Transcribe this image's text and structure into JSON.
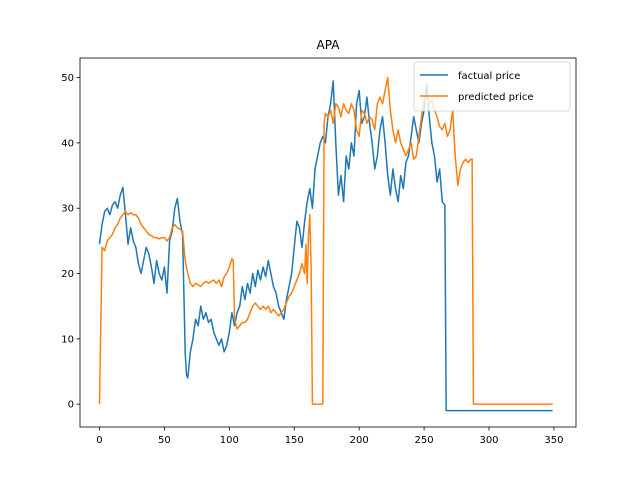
{
  "chart_data": {
    "type": "line",
    "title": "APA",
    "xlabel": "",
    "ylabel": "",
    "xlim": [
      -15,
      367
    ],
    "ylim": [
      -3.5,
      53
    ],
    "xticks": [
      0,
      50,
      100,
      150,
      200,
      250,
      300,
      350
    ],
    "yticks": [
      0,
      10,
      20,
      30,
      40,
      50
    ],
    "grid": false,
    "legend_position": "top-right",
    "series": [
      {
        "name": "factual price",
        "color": "#1f77b4",
        "points": [
          [
            0,
            24.5
          ],
          [
            2,
            27.5
          ],
          [
            4,
            29.5
          ],
          [
            6,
            30
          ],
          [
            8,
            29
          ],
          [
            10,
            30.5
          ],
          [
            12,
            31
          ],
          [
            14,
            30
          ],
          [
            16,
            32
          ],
          [
            18,
            33.2
          ],
          [
            20,
            29
          ],
          [
            22,
            24.5
          ],
          [
            24,
            27
          ],
          [
            26,
            25
          ],
          [
            28,
            24
          ],
          [
            30,
            21.5
          ],
          [
            32,
            20
          ],
          [
            34,
            22
          ],
          [
            36,
            24
          ],
          [
            38,
            23
          ],
          [
            40,
            21
          ],
          [
            42,
            18.5
          ],
          [
            44,
            22
          ],
          [
            46,
            20
          ],
          [
            48,
            19
          ],
          [
            50,
            21
          ],
          [
            52,
            17
          ],
          [
            54,
            25
          ],
          [
            56,
            26.5
          ],
          [
            58,
            30
          ],
          [
            60,
            31.5
          ],
          [
            62,
            28
          ],
          [
            64,
            26
          ],
          [
            66,
            8
          ],
          [
            67,
            4.5
          ],
          [
            68,
            4
          ],
          [
            70,
            8
          ],
          [
            72,
            10
          ],
          [
            74,
            13
          ],
          [
            76,
            12
          ],
          [
            78,
            15
          ],
          [
            80,
            13
          ],
          [
            82,
            14
          ],
          [
            84,
            12.5
          ],
          [
            86,
            13
          ],
          [
            88,
            11
          ],
          [
            90,
            10
          ],
          [
            92,
            9
          ],
          [
            94,
            10
          ],
          [
            96,
            8
          ],
          [
            98,
            9
          ],
          [
            100,
            11
          ],
          [
            102,
            14
          ],
          [
            104,
            12
          ],
          [
            106,
            14
          ],
          [
            108,
            15
          ],
          [
            110,
            18
          ],
          [
            112,
            16
          ],
          [
            114,
            18.5
          ],
          [
            116,
            17
          ],
          [
            118,
            20
          ],
          [
            120,
            18
          ],
          [
            122,
            20.5
          ],
          [
            124,
            19
          ],
          [
            126,
            21
          ],
          [
            128,
            19.5
          ],
          [
            130,
            22
          ],
          [
            132,
            20
          ],
          [
            134,
            18
          ],
          [
            136,
            17
          ],
          [
            138,
            15
          ],
          [
            140,
            14
          ],
          [
            142,
            13
          ],
          [
            144,
            16
          ],
          [
            146,
            18
          ],
          [
            148,
            20
          ],
          [
            150,
            24
          ],
          [
            152,
            28
          ],
          [
            154,
            27
          ],
          [
            156,
            24
          ],
          [
            158,
            28
          ],
          [
            160,
            31
          ],
          [
            162,
            33
          ],
          [
            164,
            30
          ],
          [
            166,
            36
          ],
          [
            168,
            38
          ],
          [
            170,
            40
          ],
          [
            172,
            41
          ],
          [
            174,
            40
          ],
          [
            176,
            44
          ],
          [
            178,
            46
          ],
          [
            180,
            49.5
          ],
          [
            182,
            40
          ],
          [
            184,
            32
          ],
          [
            186,
            35
          ],
          [
            188,
            31
          ],
          [
            190,
            38
          ],
          [
            192,
            36
          ],
          [
            194,
            40
          ],
          [
            196,
            38
          ],
          [
            198,
            46
          ],
          [
            200,
            48
          ],
          [
            202,
            43
          ],
          [
            204,
            44
          ],
          [
            206,
            47
          ],
          [
            208,
            43
          ],
          [
            210,
            40
          ],
          [
            212,
            36
          ],
          [
            214,
            38
          ],
          [
            216,
            42
          ],
          [
            218,
            44
          ],
          [
            220,
            40
          ],
          [
            222,
            35
          ],
          [
            224,
            32
          ],
          [
            226,
            36
          ],
          [
            228,
            33
          ],
          [
            230,
            31
          ],
          [
            232,
            35
          ],
          [
            234,
            33
          ],
          [
            236,
            37
          ],
          [
            238,
            38
          ],
          [
            240,
            41
          ],
          [
            242,
            44
          ],
          [
            244,
            42
          ],
          [
            246,
            40
          ],
          [
            248,
            43
          ],
          [
            250,
            45
          ],
          [
            252,
            49
          ],
          [
            254,
            44
          ],
          [
            256,
            40
          ],
          [
            258,
            38
          ],
          [
            260,
            34
          ],
          [
            262,
            36
          ],
          [
            264,
            31
          ],
          [
            266,
            30.5
          ],
          [
            267,
            -1
          ],
          [
            349,
            -1
          ]
        ]
      },
      {
        "name": "predicted price",
        "color": "#ff7f0e",
        "points": [
          [
            0,
            0
          ],
          [
            2,
            24
          ],
          [
            4,
            23.5
          ],
          [
            6,
            25
          ],
          [
            8,
            25.5
          ],
          [
            10,
            26
          ],
          [
            12,
            27
          ],
          [
            14,
            27.5
          ],
          [
            16,
            28.5
          ],
          [
            18,
            29
          ],
          [
            20,
            29.5
          ],
          [
            22,
            29
          ],
          [
            24,
            29.3
          ],
          [
            26,
            29
          ],
          [
            28,
            29
          ],
          [
            30,
            28.5
          ],
          [
            32,
            27.5
          ],
          [
            34,
            27
          ],
          [
            36,
            26.5
          ],
          [
            38,
            26
          ],
          [
            40,
            25.8
          ],
          [
            42,
            25.5
          ],
          [
            44,
            25.5
          ],
          [
            46,
            25.3
          ],
          [
            48,
            25.5
          ],
          [
            50,
            25.5
          ],
          [
            52,
            25
          ],
          [
            54,
            25.5
          ],
          [
            56,
            27
          ],
          [
            58,
            27.5
          ],
          [
            60,
            27
          ],
          [
            62,
            26.8
          ],
          [
            64,
            26.5
          ],
          [
            66,
            22
          ],
          [
            68,
            20
          ],
          [
            70,
            18.5
          ],
          [
            72,
            18
          ],
          [
            74,
            18.5
          ],
          [
            76,
            18.3
          ],
          [
            78,
            18
          ],
          [
            80,
            18.5
          ],
          [
            82,
            18.8
          ],
          [
            84,
            18.5
          ],
          [
            86,
            18.8
          ],
          [
            88,
            19
          ],
          [
            90,
            18.5
          ],
          [
            92,
            19
          ],
          [
            94,
            18
          ],
          [
            96,
            19.5
          ],
          [
            98,
            20
          ],
          [
            100,
            21
          ],
          [
            102,
            22.3
          ],
          [
            103,
            22
          ],
          [
            104,
            13
          ],
          [
            106,
            11.5
          ],
          [
            108,
            12
          ],
          [
            110,
            12.5
          ],
          [
            112,
            12.5
          ],
          [
            114,
            13
          ],
          [
            116,
            14
          ],
          [
            118,
            15
          ],
          [
            120,
            15.5
          ],
          [
            122,
            15
          ],
          [
            124,
            14.5
          ],
          [
            126,
            15
          ],
          [
            128,
            14.5
          ],
          [
            130,
            15
          ],
          [
            132,
            14
          ],
          [
            134,
            14.5
          ],
          [
            136,
            14
          ],
          [
            138,
            13.5
          ],
          [
            140,
            14
          ],
          [
            142,
            14.5
          ],
          [
            144,
            15.5
          ],
          [
            146,
            16.5
          ],
          [
            148,
            17
          ],
          [
            150,
            18
          ],
          [
            152,
            19
          ],
          [
            154,
            20
          ],
          [
            156,
            21.5
          ],
          [
            158,
            20
          ],
          [
            159,
            24.5
          ],
          [
            160,
            18.5
          ],
          [
            161,
            26
          ],
          [
            162,
            29
          ],
          [
            163,
            21
          ],
          [
            164,
            0
          ],
          [
            166,
            0
          ],
          [
            168,
            0
          ],
          [
            170,
            0
          ],
          [
            172,
            0
          ],
          [
            173,
            43
          ],
          [
            174,
            44.5
          ],
          [
            176,
            44
          ],
          [
            178,
            45
          ],
          [
            180,
            43
          ],
          [
            182,
            46
          ],
          [
            184,
            45.5
          ],
          [
            186,
            44
          ],
          [
            188,
            46
          ],
          [
            190,
            45
          ],
          [
            192,
            44.5
          ],
          [
            194,
            46
          ],
          [
            196,
            45
          ],
          [
            198,
            42
          ],
          [
            200,
            41
          ],
          [
            202,
            45
          ],
          [
            204,
            44.5
          ],
          [
            206,
            43
          ],
          [
            208,
            44
          ],
          [
            210,
            43.5
          ],
          [
            212,
            42
          ],
          [
            214,
            46
          ],
          [
            216,
            47
          ],
          [
            218,
            46
          ],
          [
            220,
            48
          ],
          [
            222,
            50
          ],
          [
            224,
            45
          ],
          [
            226,
            42
          ],
          [
            228,
            40
          ],
          [
            230,
            42
          ],
          [
            232,
            40
          ],
          [
            234,
            39
          ],
          [
            236,
            38
          ],
          [
            238,
            39
          ],
          [
            240,
            40
          ],
          [
            242,
            37.5
          ],
          [
            244,
            38
          ],
          [
            246,
            41
          ],
          [
            248,
            44
          ],
          [
            250,
            46.5
          ],
          [
            252,
            47
          ],
          [
            254,
            46
          ],
          [
            256,
            46.5
          ],
          [
            258,
            45
          ],
          [
            260,
            44
          ],
          [
            262,
            42.5
          ],
          [
            264,
            42
          ],
          [
            266,
            43
          ],
          [
            268,
            41
          ],
          [
            270,
            42
          ],
          [
            272,
            45
          ],
          [
            274,
            38
          ],
          [
            276,
            33.5
          ],
          [
            278,
            36
          ],
          [
            280,
            37
          ],
          [
            282,
            37.5
          ],
          [
            284,
            37
          ],
          [
            286,
            37.5
          ],
          [
            287,
            37.5
          ],
          [
            288,
            0
          ],
          [
            349,
            0
          ]
        ]
      }
    ]
  }
}
